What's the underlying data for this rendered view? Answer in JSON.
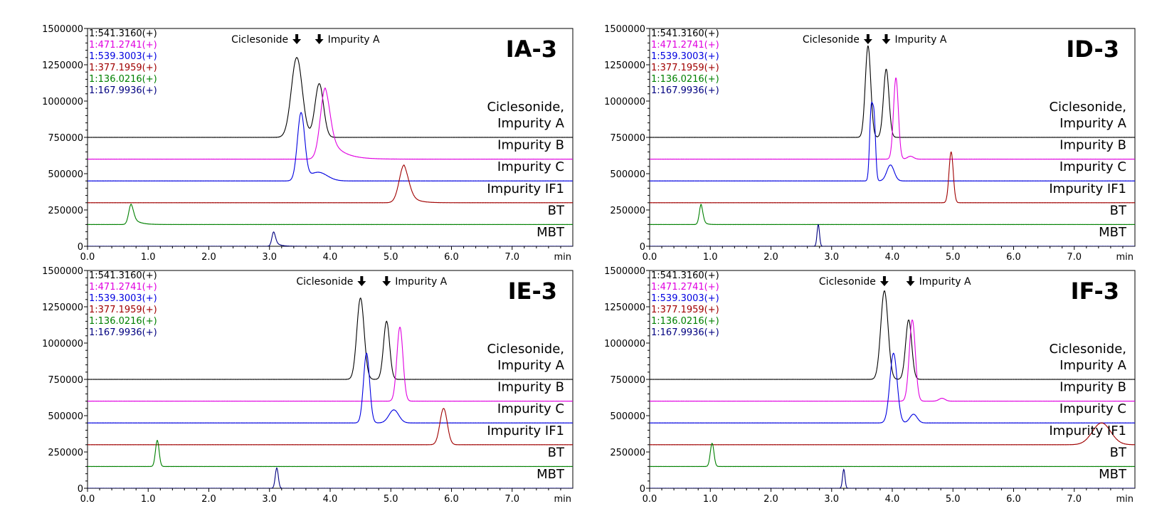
{
  "chart_data": [
    {
      "type": "line",
      "title": "IA-3",
      "xlabel": "min",
      "xlim": [
        0,
        8
      ],
      "ylim": [
        0,
        1500000
      ],
      "x_ticks": [
        "0.0",
        "1.0",
        "2.0",
        "3.0",
        "4.0",
        "5.0",
        "6.0",
        "7.0"
      ],
      "y_ticks": [
        "0",
        "250000",
        "500000",
        "750000",
        "1000000",
        "1250000",
        "1500000"
      ],
      "grid": false,
      "legend": [
        {
          "text": "1:541.3160(+)",
          "color": "#000000"
        },
        {
          "text": "1:471.2741(+)",
          "color": "#e000e0"
        },
        {
          "text": "1:539.3003(+)",
          "color": "#0000e0"
        },
        {
          "text": "1:377.1959(+)",
          "color": "#a00000"
        },
        {
          "text": "1:136.0216(+)",
          "color": "#008000"
        },
        {
          "text": "1:167.9936(+)",
          "color": "#000080"
        }
      ],
      "annotations": [
        {
          "text": "Ciclesonide",
          "x": 3.45,
          "side": "left"
        },
        {
          "text": "Impurity A",
          "x": 3.82,
          "side": "right"
        }
      ],
      "series": [
        {
          "name": "Ciclesonide,\nImpurity A",
          "color": "#000000",
          "baseline": 750000,
          "peaks": [
            {
              "rt": 3.45,
              "height": 550000,
              "width": 0.09
            },
            {
              "rt": 3.82,
              "height": 370000,
              "width": 0.07
            }
          ]
        },
        {
          "name": "Impurity B",
          "color": "#e000e0",
          "baseline": 600000,
          "peaks": [
            {
              "rt": 3.92,
              "height": 490000,
              "width": 0.08,
              "tail": 0.2
            }
          ]
        },
        {
          "name": "Impurity C",
          "color": "#0000e0",
          "baseline": 450000,
          "peaks": [
            {
              "rt": 3.52,
              "height": 460000,
              "width": 0.06
            },
            {
              "rt": 3.8,
              "height": 60000,
              "width": 0.15
            }
          ]
        },
        {
          "name": "Impurity IF1",
          "color": "#a00000",
          "baseline": 300000,
          "peaks": [
            {
              "rt": 5.22,
              "height": 260000,
              "width": 0.08,
              "tail": 0.12
            }
          ]
        },
        {
          "name": "BT",
          "color": "#008000",
          "baseline": 150000,
          "peaks": [
            {
              "rt": 0.72,
              "height": 140000,
              "width": 0.04,
              "tail": 0.1
            }
          ]
        },
        {
          "name": "MBT",
          "color": "#000080",
          "baseline": 0,
          "peaks": [
            {
              "rt": 3.07,
              "height": 100000,
              "width": 0.03,
              "tail": 0.07
            }
          ]
        }
      ]
    },
    {
      "type": "line",
      "title": "ID-3",
      "xlabel": "min",
      "xlim": [
        0,
        8
      ],
      "ylim": [
        0,
        1500000
      ],
      "x_ticks": [
        "0.0",
        "1.0",
        "2.0",
        "3.0",
        "4.0",
        "5.0",
        "6.0",
        "7.0"
      ],
      "y_ticks": [
        "0",
        "250000",
        "500000",
        "750000",
        "1000000",
        "1250000",
        "1500000"
      ],
      "grid": false,
      "legend": [
        {
          "text": "1:541.3160(+)",
          "color": "#000000"
        },
        {
          "text": "1:471.2741(+)",
          "color": "#e000e0"
        },
        {
          "text": "1:539.3003(+)",
          "color": "#0000e0"
        },
        {
          "text": "1:377.1959(+)",
          "color": "#a00000"
        },
        {
          "text": "1:136.0216(+)",
          "color": "#008000"
        },
        {
          "text": "1:167.9936(+)",
          "color": "#000080"
        }
      ],
      "annotations": [
        {
          "text": "Ciclesonide",
          "x": 3.6,
          "side": "left"
        },
        {
          "text": "Impurity A",
          "x": 3.9,
          "side": "right"
        }
      ],
      "series": [
        {
          "name": "Ciclesonide,\nImpurity A",
          "color": "#000000",
          "baseline": 750000,
          "peaks": [
            {
              "rt": 3.6,
              "height": 630000,
              "width": 0.045
            },
            {
              "rt": 3.9,
              "height": 470000,
              "width": 0.045
            }
          ]
        },
        {
          "name": "Impurity B",
          "color": "#e000e0",
          "baseline": 600000,
          "peaks": [
            {
              "rt": 4.06,
              "height": 560000,
              "width": 0.04
            },
            {
              "rt": 4.3,
              "height": 20000,
              "width": 0.05
            }
          ]
        },
        {
          "name": "Impurity C",
          "color": "#0000e0",
          "baseline": 450000,
          "peaks": [
            {
              "rt": 3.65,
              "height": 460000,
              "width": 0.025
            },
            {
              "rt": 3.7,
              "height": 420000,
              "width": 0.025
            },
            {
              "rt": 3.97,
              "height": 110000,
              "width": 0.06
            }
          ]
        },
        {
          "name": "Impurity IF1",
          "color": "#a00000",
          "baseline": 300000,
          "peaks": [
            {
              "rt": 4.97,
              "height": 350000,
              "width": 0.035
            }
          ]
        },
        {
          "name": "BT",
          "color": "#008000",
          "baseline": 150000,
          "peaks": [
            {
              "rt": 0.85,
              "height": 140000,
              "width": 0.03,
              "tail": 0.04
            }
          ]
        },
        {
          "name": "MBT",
          "color": "#000080",
          "baseline": 0,
          "peaks": [
            {
              "rt": 2.78,
              "height": 150000,
              "width": 0.02
            }
          ]
        }
      ]
    },
    {
      "type": "line",
      "title": "IE-3",
      "xlabel": "min",
      "xlim": [
        0,
        8
      ],
      "ylim": [
        0,
        1500000
      ],
      "x_ticks": [
        "0.0",
        "1.0",
        "2.0",
        "3.0",
        "4.0",
        "5.0",
        "6.0",
        "7.0"
      ],
      "y_ticks": [
        "0",
        "250000",
        "500000",
        "750000",
        "1000000",
        "1250000",
        "1500000"
      ],
      "grid": false,
      "legend": [
        {
          "text": "1:541.3160(+)",
          "color": "#000000"
        },
        {
          "text": "1:471.2741(+)",
          "color": "#e000e0"
        },
        {
          "text": "1:539.3003(+)",
          "color": "#0000e0"
        },
        {
          "text": "1:377.1959(+)",
          "color": "#a00000"
        },
        {
          "text": "1:136.0216(+)",
          "color": "#008000"
        },
        {
          "text": "1:167.9936(+)",
          "color": "#000080"
        }
      ],
      "annotations": [
        {
          "text": "Ciclesonide",
          "x": 4.52,
          "side": "left"
        },
        {
          "text": "Impurity A",
          "x": 4.93,
          "side": "right"
        }
      ],
      "series": [
        {
          "name": "Ciclesonide,\nImpurity A",
          "color": "#000000",
          "baseline": 750000,
          "peaks": [
            {
              "rt": 4.5,
              "height": 560000,
              "width": 0.06
            },
            {
              "rt": 4.93,
              "height": 400000,
              "width": 0.05
            }
          ]
        },
        {
          "name": "Impurity B",
          "color": "#e000e0",
          "baseline": 600000,
          "peaks": [
            {
              "rt": 5.15,
              "height": 510000,
              "width": 0.05
            }
          ]
        },
        {
          "name": "Impurity C",
          "color": "#0000e0",
          "baseline": 450000,
          "peaks": [
            {
              "rt": 4.6,
              "height": 480000,
              "width": 0.05
            },
            {
              "rt": 5.05,
              "height": 90000,
              "width": 0.08
            }
          ]
        },
        {
          "name": "Impurity IF1",
          "color": "#a00000",
          "baseline": 300000,
          "peaks": [
            {
              "rt": 5.87,
              "height": 250000,
              "width": 0.06
            }
          ]
        },
        {
          "name": "BT",
          "color": "#008000",
          "baseline": 150000,
          "peaks": [
            {
              "rt": 1.15,
              "height": 180000,
              "width": 0.03
            }
          ]
        },
        {
          "name": "MBT",
          "color": "#000080",
          "baseline": 0,
          "peaks": [
            {
              "rt": 3.12,
              "height": 140000,
              "width": 0.025
            }
          ]
        }
      ]
    },
    {
      "type": "line",
      "title": "IF-3",
      "xlabel": "min",
      "xlim": [
        0,
        8
      ],
      "ylim": [
        0,
        1500000
      ],
      "x_ticks": [
        "0.0",
        "1.0",
        "2.0",
        "3.0",
        "4.0",
        "5.0",
        "6.0",
        "7.0"
      ],
      "y_ticks": [
        "0",
        "250000",
        "500000",
        "750000",
        "1000000",
        "1250000",
        "1500000"
      ],
      "grid": false,
      "legend": [
        {
          "text": "1:541.3160(+)",
          "color": "#000000"
        },
        {
          "text": "1:471.2741(+)",
          "color": "#e000e0"
        },
        {
          "text": "1:539.3003(+)",
          "color": "#0000e0"
        },
        {
          "text": "1:377.1959(+)",
          "color": "#a00000"
        },
        {
          "text": "1:136.0216(+)",
          "color": "#008000"
        },
        {
          "text": "1:167.9936(+)",
          "color": "#000080"
        }
      ],
      "annotations": [
        {
          "text": "Ciclesonide",
          "x": 3.87,
          "side": "left"
        },
        {
          "text": "Impurity A",
          "x": 4.3,
          "side": "right"
        }
      ],
      "series": [
        {
          "name": "Ciclesonide,\nImpurity A",
          "color": "#000000",
          "baseline": 750000,
          "peaks": [
            {
              "rt": 3.87,
              "height": 610000,
              "width": 0.06
            },
            {
              "rt": 4.27,
              "height": 410000,
              "width": 0.05
            }
          ]
        },
        {
          "name": "Impurity B",
          "color": "#e000e0",
          "baseline": 600000,
          "peaks": [
            {
              "rt": 4.33,
              "height": 560000,
              "width": 0.05
            },
            {
              "rt": 4.82,
              "height": 20000,
              "width": 0.05
            }
          ]
        },
        {
          "name": "Impurity C",
          "color": "#0000e0",
          "baseline": 450000,
          "peaks": [
            {
              "rt": 4.02,
              "height": 480000,
              "width": 0.06
            },
            {
              "rt": 4.35,
              "height": 60000,
              "width": 0.06
            }
          ]
        },
        {
          "name": "Impurity IF1",
          "color": "#a00000",
          "baseline": 300000,
          "peaks": [
            {
              "rt": 7.45,
              "height": 150000,
              "width": 0.15
            }
          ]
        },
        {
          "name": "BT",
          "color": "#008000",
          "baseline": 150000,
          "peaks": [
            {
              "rt": 1.03,
              "height": 160000,
              "width": 0.03
            }
          ]
        },
        {
          "name": "MBT",
          "color": "#000080",
          "baseline": 0,
          "peaks": [
            {
              "rt": 3.2,
              "height": 130000,
              "width": 0.02
            }
          ]
        }
      ]
    }
  ]
}
